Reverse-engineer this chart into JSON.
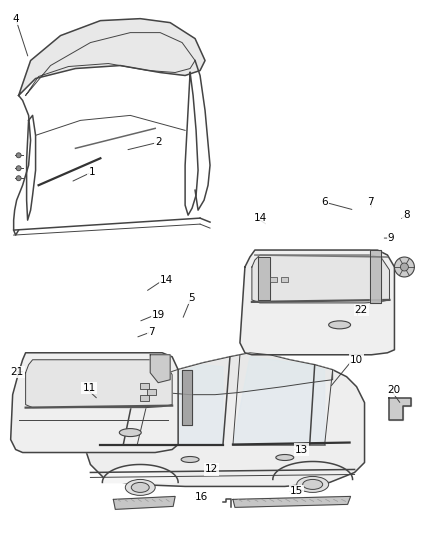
{
  "bg_color": "#ffffff",
  "line_color": "#444444",
  "fill_color": "#f2f2f2",
  "label_color": "#000000",
  "fig_width": 4.38,
  "fig_height": 5.33,
  "dpi": 100,
  "font_size": 7.5
}
